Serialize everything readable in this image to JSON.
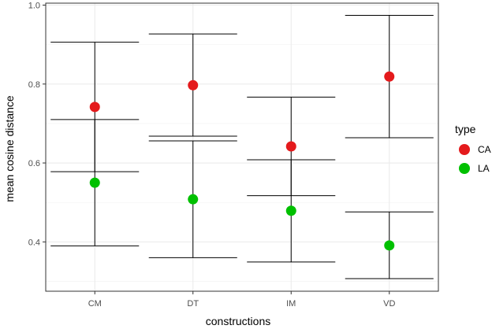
{
  "chart_data": {
    "type": "scatter",
    "title": "",
    "xlabel": "constructions",
    "ylabel": "mean cosine distance",
    "categories": [
      "CM",
      "DT",
      "IM",
      "VD"
    ],
    "ylim": [
      0.275,
      1.005
    ],
    "yticks": [
      0.4,
      0.6,
      0.8,
      1.0
    ],
    "ytick_labels": [
      "0.4",
      "0.6",
      "0.8",
      "1.0"
    ],
    "grid": true,
    "legend_title": "type",
    "legend_position": "right",
    "series": [
      {
        "name": "CA",
        "color": "#e41a1c",
        "values": [
          0.742,
          0.797,
          0.642,
          0.819
        ],
        "lower": [
          0.578,
          0.668,
          0.517,
          0.664
        ],
        "upper": [
          0.906,
          0.927,
          0.767,
          0.974
        ]
      },
      {
        "name": "LA",
        "color": "#00c000",
        "values": [
          0.55,
          0.508,
          0.479,
          0.391
        ],
        "lower": [
          0.39,
          0.36,
          0.349,
          0.307
        ],
        "upper": [
          0.71,
          0.656,
          0.608,
          0.476
        ]
      }
    ]
  }
}
